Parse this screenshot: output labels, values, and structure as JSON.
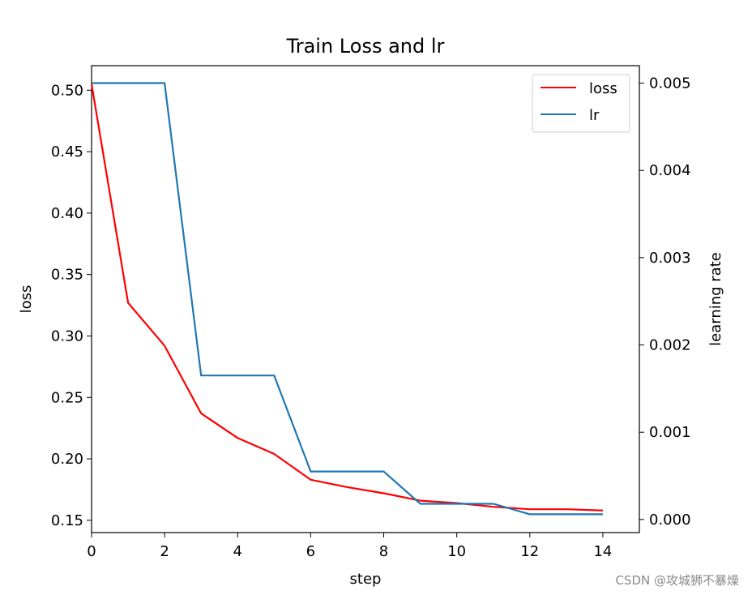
{
  "chart_data": {
    "type": "line",
    "title": "Train Loss and lr",
    "xlabel": "step",
    "ylabel_left": "loss",
    "ylabel_right": "learning rate",
    "xlim": [
      0,
      15
    ],
    "ylim_left": [
      0.14,
      0.52
    ],
    "ylim_right": [
      -0.00015,
      0.0052
    ],
    "x_ticks": [
      0,
      2,
      4,
      6,
      8,
      10,
      12,
      14
    ],
    "y_ticks_left": [
      "0.15",
      "0.20",
      "0.25",
      "0.30",
      "0.35",
      "0.40",
      "0.45",
      "0.50"
    ],
    "y_ticks_right": [
      "0.000",
      "0.001",
      "0.002",
      "0.003",
      "0.004",
      "0.005"
    ],
    "grid": false,
    "legend_position": "top-right",
    "series": [
      {
        "name": "loss",
        "axis": "left",
        "color": "#ff0000",
        "x": [
          0,
          1,
          2,
          3,
          4,
          5,
          6,
          7,
          8,
          9,
          10,
          11,
          12,
          13,
          14
        ],
        "values": [
          0.505,
          0.327,
          0.292,
          0.237,
          0.217,
          0.204,
          0.183,
          0.177,
          0.172,
          0.166,
          0.164,
          0.161,
          0.159,
          0.159,
          0.158
        ]
      },
      {
        "name": "lr",
        "axis": "right",
        "color": "#1f77b4",
        "x": [
          0,
          1,
          2,
          3,
          4,
          5,
          6,
          7,
          8,
          9,
          10,
          11,
          12,
          13,
          14
        ],
        "values": [
          0.005,
          0.005,
          0.005,
          0.00165,
          0.00165,
          0.00165,
          0.00055,
          0.00055,
          0.00055,
          0.00018,
          0.00018,
          0.00018,
          6e-05,
          6e-05,
          6e-05
        ]
      }
    ]
  },
  "watermark": "CSDN @攻城狮不暴燥"
}
